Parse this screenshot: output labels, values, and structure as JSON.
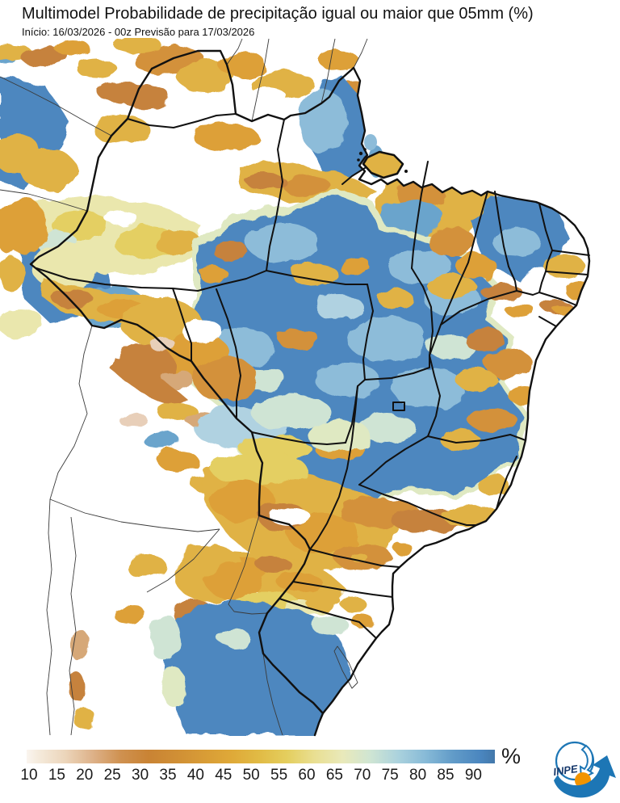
{
  "header": {
    "title": "Multimodel Probabilidade de precipitação igual ou maior que 05mm (%)",
    "subtitle": "Início: 16/03/2026 - 00z  Previsão para 17/03/2026"
  },
  "colorbar": {
    "unit": "%",
    "tick_labels": [
      "10",
      "15",
      "20",
      "25",
      "30",
      "35",
      "40",
      "45",
      "50",
      "55",
      "60",
      "65",
      "70",
      "75",
      "80",
      "85",
      "90"
    ],
    "stops": [
      {
        "v": 8,
        "c": "#faf5ef"
      },
      {
        "v": 10,
        "c": "#f5ebdd"
      },
      {
        "v": 15,
        "c": "#ecd5ba"
      },
      {
        "v": 20,
        "c": "#ddb188"
      },
      {
        "v": 25,
        "c": "#cf9150"
      },
      {
        "v": 30,
        "c": "#c98334"
      },
      {
        "v": 35,
        "c": "#d08f35"
      },
      {
        "v": 40,
        "c": "#d89c36"
      },
      {
        "v": 45,
        "c": "#dfa938"
      },
      {
        "v": 50,
        "c": "#e1bb45"
      },
      {
        "v": 55,
        "c": "#e4ce5e"
      },
      {
        "v": 60,
        "c": "#e9df92"
      },
      {
        "v": 65,
        "c": "#e9e9ba"
      },
      {
        "v": 70,
        "c": "#cfe5d3"
      },
      {
        "v": 75,
        "c": "#abd2dd"
      },
      {
        "v": 80,
        "c": "#87bad7"
      },
      {
        "v": 85,
        "c": "#619bc8"
      },
      {
        "v": 90,
        "c": "#4a86bf"
      },
      {
        "v": 92.5,
        "c": "#4378aa"
      }
    ]
  },
  "map": {
    "palette": {
      "blue": "#4d87bf",
      "mblue": "#6ba4cc",
      "lblue": "#8dbcd9",
      "pblue": "#b0d2e1",
      "teal": "#cfe4d4",
      "pgreen": "#dfe9c2",
      "pyel": "#eae7ad",
      "yel": "#e4cf62",
      "gold": "#e0b244",
      "amber": "#dda038",
      "orange": "#d3913a",
      "copper": "#c6823e",
      "tan": "#d6a878",
      "pink": "#e8cfb9",
      "cream": "#f4ead9",
      "border": "#111111",
      "thinb": "#3a3a3a",
      "navy": "#16386b",
      "logoBlue": "#1d76b5",
      "logoOrange": "#f29400"
    }
  },
  "logo": {
    "text": "INPE"
  }
}
